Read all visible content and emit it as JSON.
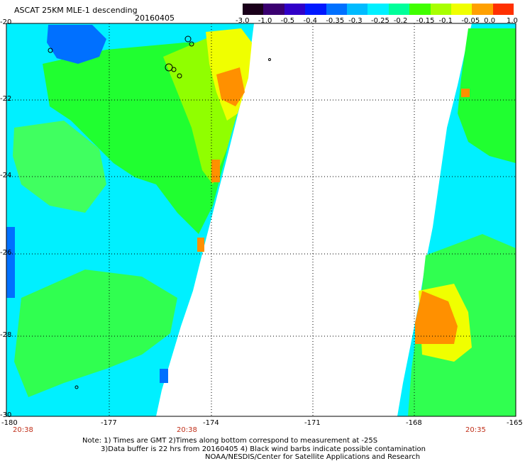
{
  "header": {
    "title": "ASCAT 25KM MLE-1 descending",
    "date": "20160405"
  },
  "colorbar": {
    "labels": [
      "-3.0",
      "-1.0",
      "-0.5",
      "-0.4",
      "-0.35",
      "-0.3",
      "-0.25",
      "-0.2",
      "-0.15",
      "-0.1",
      "-0.05",
      "0.0",
      "1.0"
    ],
    "colors": [
      "#1a001a",
      "#3a0070",
      "#3000c8",
      "#0018ff",
      "#0070ff",
      "#00bbff",
      "#00f0ff",
      "#00ff9a",
      "#40ff00",
      "#a8ff00",
      "#f0ff00",
      "#ffa000",
      "#ff3000"
    ]
  },
  "map": {
    "lat_labels": [
      "-20",
      "-22",
      "-24",
      "-26",
      "-28",
      "-30"
    ],
    "lon_labels": [
      "-180",
      "-177",
      "-174",
      "-171",
      "-168",
      "-165"
    ],
    "time_labels": [
      "20:38",
      "20:38",
      "20:35"
    ],
    "swath_colors": {
      "cyan": "#00f0ff",
      "light_cyan": "#40ffe0",
      "green": "#20ff30",
      "lime": "#80ff00",
      "yellow": "#f0ff00",
      "orange": "#ff9000",
      "blue": "#0070ff"
    }
  },
  "footer": {
    "note1": "Note: 1) Times are GMT  2)Times along bottom correspond to measurement at -25S",
    "note2": "3)Data buffer is 22 hrs from 20160405  4) Black wind barbs indicate possible contamination",
    "credit": "NOAA/NESDIS/Center for Satellite Applications and Research"
  }
}
